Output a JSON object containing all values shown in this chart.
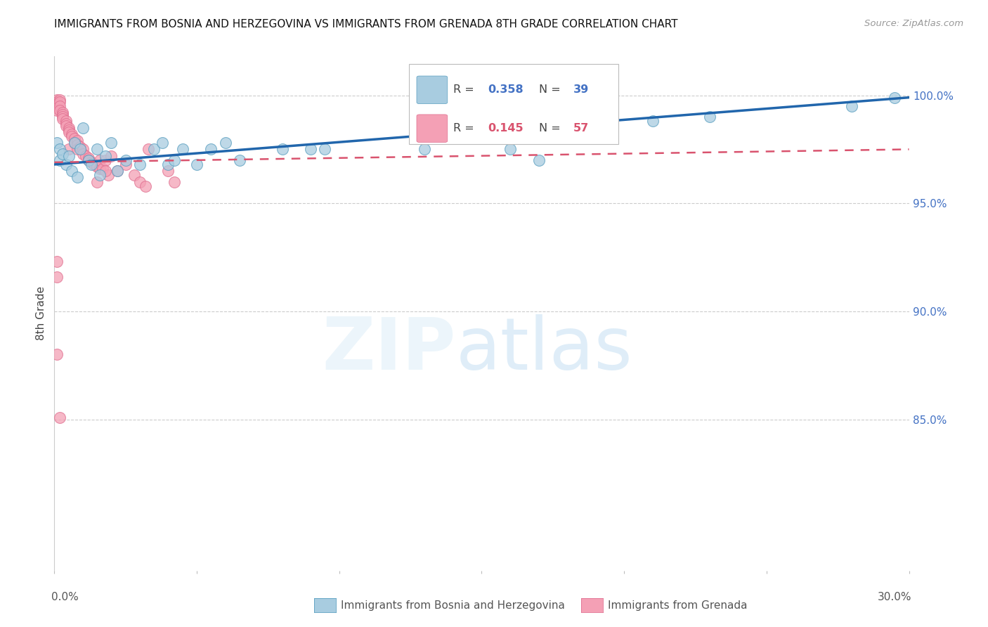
{
  "title": "IMMIGRANTS FROM BOSNIA AND HERZEGOVINA VS IMMIGRANTS FROM GRENADA 8TH GRADE CORRELATION CHART",
  "source": "Source: ZipAtlas.com",
  "ylabel": "8th Grade",
  "xmin": 0.0,
  "xmax": 0.3,
  "ymin": 0.78,
  "ymax": 1.018,
  "yticks": [
    0.85,
    0.9,
    0.95,
    1.0
  ],
  "ytick_labels": [
    "85.0%",
    "90.0%",
    "95.0%",
    "100.0%"
  ],
  "legend_r1": "0.358",
  "legend_n1": "39",
  "legend_r2": "0.145",
  "legend_n2": "57",
  "blue_color": "#a8cce0",
  "pink_color": "#f4a0b5",
  "line_blue": "#2166ac",
  "line_pink": "#d9536e",
  "blue_scatter_x": [
    0.001,
    0.002,
    0.002,
    0.003,
    0.004,
    0.005,
    0.006,
    0.007,
    0.008,
    0.009,
    0.01,
    0.012,
    0.013,
    0.015,
    0.016,
    0.018,
    0.02,
    0.022,
    0.025,
    0.03,
    0.035,
    0.038,
    0.04,
    0.042,
    0.045,
    0.05,
    0.055,
    0.06,
    0.065,
    0.08,
    0.09,
    0.095,
    0.13,
    0.16,
    0.17,
    0.21,
    0.23,
    0.28,
    0.295
  ],
  "blue_scatter_y": [
    0.978,
    0.975,
    0.97,
    0.973,
    0.968,
    0.972,
    0.965,
    0.978,
    0.962,
    0.975,
    0.985,
    0.97,
    0.968,
    0.975,
    0.963,
    0.972,
    0.978,
    0.965,
    0.97,
    0.968,
    0.975,
    0.978,
    0.968,
    0.97,
    0.975,
    0.968,
    0.975,
    0.978,
    0.97,
    0.975,
    0.975,
    0.975,
    0.975,
    0.975,
    0.97,
    0.988,
    0.99,
    0.995,
    0.999
  ],
  "pink_scatter_x": [
    0.001,
    0.001,
    0.001,
    0.001,
    0.001,
    0.001,
    0.002,
    0.002,
    0.002,
    0.002,
    0.003,
    0.003,
    0.003,
    0.003,
    0.004,
    0.004,
    0.004,
    0.005,
    0.005,
    0.005,
    0.005,
    0.006,
    0.006,
    0.007,
    0.007,
    0.008,
    0.008,
    0.008,
    0.009,
    0.01,
    0.01,
    0.011,
    0.012,
    0.012,
    0.013,
    0.014,
    0.015,
    0.016,
    0.016,
    0.017,
    0.018,
    0.019,
    0.02,
    0.022,
    0.025,
    0.028,
    0.03,
    0.032,
    0.033,
    0.04,
    0.042,
    0.015,
    0.018,
    0.001,
    0.001,
    0.001,
    0.002
  ],
  "pink_scatter_y": [
    0.998,
    0.997,
    0.996,
    0.995,
    0.994,
    0.993,
    0.998,
    0.997,
    0.995,
    0.993,
    0.992,
    0.991,
    0.99,
    0.989,
    0.988,
    0.987,
    0.986,
    0.985,
    0.984,
    0.983,
    0.975,
    0.982,
    0.981,
    0.98,
    0.978,
    0.979,
    0.977,
    0.975,
    0.976,
    0.975,
    0.973,
    0.972,
    0.971,
    0.97,
    0.969,
    0.968,
    0.967,
    0.966,
    0.97,
    0.966,
    0.97,
    0.963,
    0.972,
    0.965,
    0.968,
    0.963,
    0.96,
    0.958,
    0.975,
    0.965,
    0.96,
    0.96,
    0.965,
    0.923,
    0.916,
    0.88,
    0.851
  ],
  "blue_trend_x": [
    0.0,
    0.3
  ],
  "blue_trend_y": [
    0.968,
    0.999
  ],
  "pink_trend_x": [
    0.0,
    0.3
  ],
  "pink_trend_y": [
    0.969,
    0.975
  ]
}
